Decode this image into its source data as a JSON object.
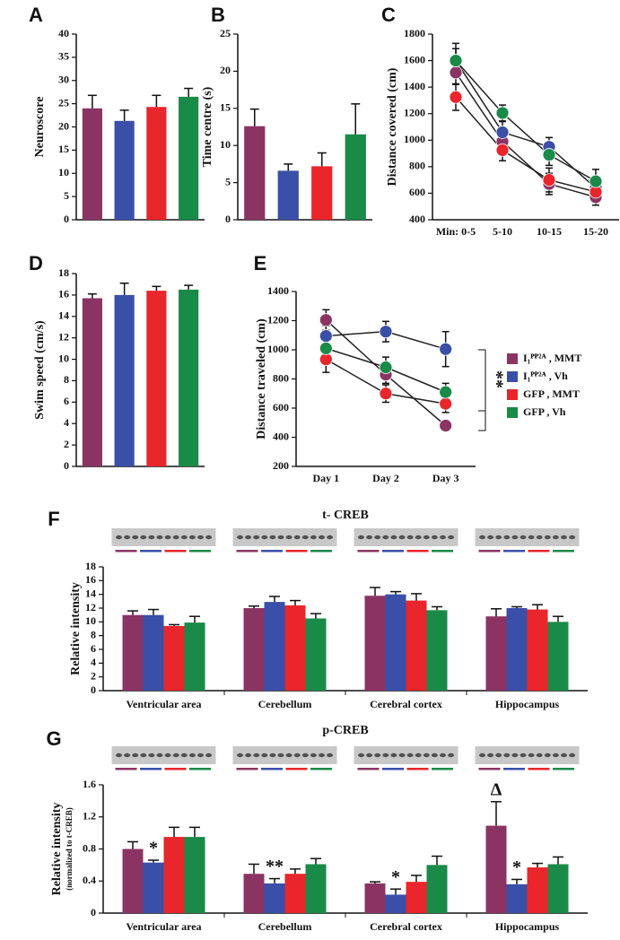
{
  "chart_data": [
    {
      "type": "bar",
      "panel": "A",
      "ylabel": "Neuroscore",
      "categories": [
        null,
        null,
        null,
        null
      ],
      "values": [
        24,
        21.3,
        24.3,
        26.5
      ],
      "errors": [
        2.8,
        2.3,
        2.5,
        1.8
      ],
      "colors": [
        "#8b3464",
        "#3a4fa8",
        "#e8262b",
        "#1a8a48"
      ],
      "ylim": [
        0,
        40
      ],
      "yticks": [
        0,
        5,
        10,
        15,
        20,
        25,
        30,
        35,
        40
      ]
    },
    {
      "type": "bar",
      "panel": "B",
      "ylabel": "Time centre (s)",
      "categories": [
        null,
        null,
        null,
        null
      ],
      "values": [
        12.6,
        6.6,
        7.2,
        11.5
      ],
      "errors": [
        2.3,
        0.9,
        1.8,
        4.1
      ],
      "colors": [
        "#8b3464",
        "#3a4fa8",
        "#e8262b",
        "#1a8a48"
      ],
      "ylim": [
        0,
        25
      ],
      "yticks": [
        0,
        5,
        10,
        15,
        20,
        25
      ]
    },
    {
      "type": "line",
      "panel": "C",
      "ylabel": "Distance covered (cm)",
      "categories": [
        "Min: 0-5",
        "5-10",
        "10-15",
        "15-20"
      ],
      "series": [
        {
          "color": "#8b3464",
          "values": [
            1510,
            990,
            670,
            570
          ],
          "errors": [
            90,
            70,
            80,
            60
          ]
        },
        {
          "color": "#3a4fa8",
          "values": [
            1600,
            1060,
            950,
            640
          ],
          "errors": [
            130,
            80,
            70,
            60
          ]
        },
        {
          "color": "#e8262b",
          "values": [
            1325,
            925,
            700,
            610
          ],
          "errors": [
            100,
            80,
            90,
            80
          ]
        },
        {
          "color": "#1a8a48",
          "values": [
            1600,
            1205,
            890,
            690
          ],
          "errors": [
            90,
            60,
            80,
            90
          ]
        }
      ],
      "ylim": [
        400,
        1800
      ],
      "yticks": [
        400,
        600,
        800,
        1000,
        1200,
        1400,
        1600,
        1800
      ]
    },
    {
      "type": "bar",
      "panel": "D",
      "ylabel": "Swim speed (cm/s)",
      "categories": [
        null,
        null,
        null,
        null
      ],
      "values": [
        15.7,
        16.0,
        16.4,
        16.5
      ],
      "errors": [
        0.4,
        1.1,
        0.4,
        0.4
      ],
      "colors": [
        "#8b3464",
        "#3a4fa8",
        "#e8262b",
        "#1a8a48"
      ],
      "ylim": [
        0,
        18
      ],
      "yticks": [
        0,
        2,
        4,
        6,
        8,
        10,
        12,
        14,
        16,
        18
      ]
    },
    {
      "type": "line",
      "panel": "E",
      "ylabel": "Distance traveled (cm)",
      "categories": [
        "Day 1",
        "Day 2",
        "Day 3"
      ],
      "series": [
        {
          "name": "I₁ᴾᴾ²ᴬ , MMT",
          "color": "#8b3464",
          "values": [
            1205,
            830,
            480
          ],
          "errors": [
            70,
            60,
            30
          ]
        },
        {
          "name": "I₁ᴾᴾ²ᴬ , Vh",
          "color": "#3a4fa8",
          "values": [
            1095,
            1125,
            1005
          ],
          "errors": [
            70,
            70,
            120
          ]
        },
        {
          "name": "GFP , MMT",
          "color": "#e8262b",
          "values": [
            935,
            700,
            630
          ],
          "errors": [
            90,
            60,
            60
          ]
        },
        {
          "name": "GFP , Vh",
          "color": "#1a8a48",
          "values": [
            1010,
            880,
            710
          ],
          "errors": [
            90,
            70,
            60
          ]
        }
      ],
      "annotation": "**",
      "ylim": [
        200,
        1400
      ],
      "yticks": [
        200,
        400,
        600,
        800,
        1000,
        1200,
        1400
      ]
    },
    {
      "type": "grouped_bar",
      "panel": "F",
      "title": "t- CREB",
      "ylabel": "Relative intensity",
      "categories": [
        "Ventricular area",
        "Cerebellum",
        "Cerebral cortex",
        "Hippocampus"
      ],
      "series": [
        {
          "color": "#8b3464",
          "values": [
            11.0,
            12.0,
            13.8,
            10.8
          ],
          "errors": [
            0.6,
            0.3,
            1.2,
            1.1
          ]
        },
        {
          "color": "#3a4fa8",
          "values": [
            11.0,
            12.9,
            14.0,
            12.0
          ],
          "errors": [
            0.8,
            0.8,
            0.4,
            0.2
          ]
        },
        {
          "color": "#e8262b",
          "values": [
            9.4,
            12.4,
            13.1,
            11.8
          ],
          "errors": [
            0.2,
            0.7,
            1.0,
            0.7
          ]
        },
        {
          "color": "#1a8a48",
          "values": [
            9.9,
            10.5,
            11.7,
            10.0
          ],
          "errors": [
            0.9,
            0.7,
            0.5,
            0.8
          ]
        }
      ],
      "ylim": [
        0,
        18
      ],
      "yticks": [
        0,
        2,
        4,
        6,
        8,
        10,
        12,
        14,
        16,
        18
      ]
    },
    {
      "type": "grouped_bar",
      "panel": "G",
      "title": "p-CREB",
      "ylabel": "Relative intensity",
      "ylabel_note": "(normalized to t-CREB)",
      "categories": [
        "Ventricular area",
        "Cerebellum",
        "Cerebral cortex",
        "Hippocampus"
      ],
      "series": [
        {
          "color": "#8b3464",
          "values": [
            0.8,
            0.49,
            0.37,
            1.09
          ],
          "errors": [
            0.09,
            0.12,
            0.02,
            0.3
          ],
          "annotations": [
            null,
            null,
            null,
            "Δ"
          ]
        },
        {
          "color": "#3a4fa8",
          "values": [
            0.63,
            0.37,
            0.23,
            0.36
          ],
          "errors": [
            0.03,
            0.06,
            0.07,
            0.06
          ],
          "annotations": [
            "*",
            "**",
            "*",
            "*"
          ]
        },
        {
          "color": "#e8262b",
          "values": [
            0.95,
            0.49,
            0.39,
            0.57
          ],
          "errors": [
            0.12,
            0.06,
            0.08,
            0.05
          ]
        },
        {
          "color": "#1a8a48",
          "values": [
            0.95,
            0.61,
            0.6,
            0.61
          ],
          "errors": [
            0.12,
            0.07,
            0.11,
            0.09
          ]
        }
      ],
      "ylim": [
        0,
        1.6
      ],
      "yticks": [
        0,
        0.4,
        0.8,
        1.2,
        1.6
      ]
    }
  ]
}
